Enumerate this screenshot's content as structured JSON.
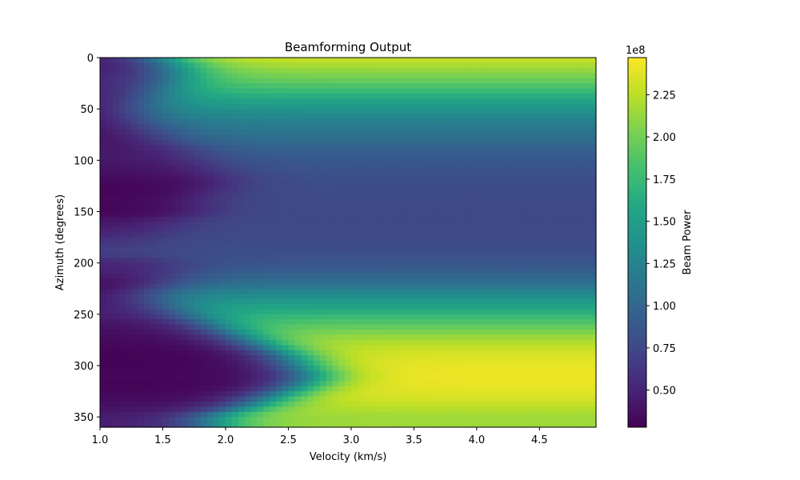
{
  "chart_data": {
    "type": "heatmap",
    "title": "Beamforming Output",
    "xlabel": "Velocity (km/s)",
    "ylabel": "Azimuth (degrees)",
    "xlim": [
      1.0,
      4.95
    ],
    "ylim": [
      360,
      0
    ],
    "y_inverted": true,
    "x_ticks": [
      "1.0",
      "1.5",
      "2.0",
      "2.5",
      "3.0",
      "3.5",
      "4.0",
      "4.5"
    ],
    "x_tick_values": [
      1.0,
      1.5,
      2.0,
      2.5,
      3.0,
      3.5,
      4.0,
      4.5
    ],
    "y_ticks": [
      "0",
      "50",
      "100",
      "150",
      "200",
      "250",
      "300",
      "350"
    ],
    "y_tick_values": [
      0,
      50,
      100,
      150,
      200,
      250,
      300,
      350
    ],
    "x_step_kms": 0.05,
    "y_step_deg": 10,
    "colormap": "viridis",
    "colorbar": {
      "label": "Beam Power",
      "offset_text": "1e8",
      "vmin": 0.28,
      "vmax": 2.47,
      "ticks": [
        "0.50",
        "0.75",
        "1.00",
        "1.25",
        "1.50",
        "1.75",
        "2.00",
        "2.25"
      ],
      "tick_values": [
        0.5,
        0.75,
        1.0,
        1.25,
        1.5,
        1.75,
        2.0,
        2.25
      ]
    },
    "profile_azimuths": [
      0,
      10,
      20,
      30,
      40,
      50,
      60,
      70,
      80,
      90,
      100,
      110,
      120,
      130,
      140,
      150,
      160,
      170,
      180,
      190,
      200,
      210,
      220,
      230,
      240,
      250,
      260,
      270,
      280,
      290,
      300,
      310,
      320,
      330,
      340,
      350
    ],
    "high_velocity_power": [
      2.3,
      2.15,
      2.0,
      1.8,
      1.6,
      1.4,
      1.25,
      1.15,
      1.05,
      0.95,
      0.88,
      0.83,
      0.8,
      0.78,
      0.77,
      0.76,
      0.76,
      0.77,
      0.78,
      0.8,
      0.85,
      0.95,
      1.1,
      1.3,
      1.5,
      1.7,
      1.9,
      2.1,
      2.25,
      2.35,
      2.4,
      2.42,
      2.4,
      2.35,
      2.25,
      2.15
    ],
    "low_velocity_power": [
      0.4,
      0.42,
      0.48,
      0.45,
      0.4,
      0.35,
      0.33,
      0.35,
      0.38,
      0.42,
      0.42,
      0.38,
      0.33,
      0.3,
      0.32,
      0.3,
      0.4,
      0.48,
      0.6,
      0.7,
      0.5,
      0.45,
      0.32,
      0.35,
      0.4,
      0.45,
      0.38,
      0.35,
      0.32,
      0.3,
      0.3,
      0.32,
      0.3,
      0.33,
      0.38,
      0.45
    ],
    "transition_velocity_kms": [
      1.5,
      1.6,
      1.6,
      1.5,
      1.4,
      1.3,
      1.3,
      1.4,
      1.5,
      1.7,
      1.8,
      1.9,
      2.0,
      1.9,
      1.8,
      1.8,
      1.6,
      1.5,
      1.4,
      1.5,
      1.6,
      1.6,
      1.5,
      1.4,
      1.5,
      1.7,
      1.9,
      2.1,
      2.3,
      2.5,
      2.6,
      2.7,
      2.6,
      2.4,
      2.2,
      1.9
    ]
  }
}
